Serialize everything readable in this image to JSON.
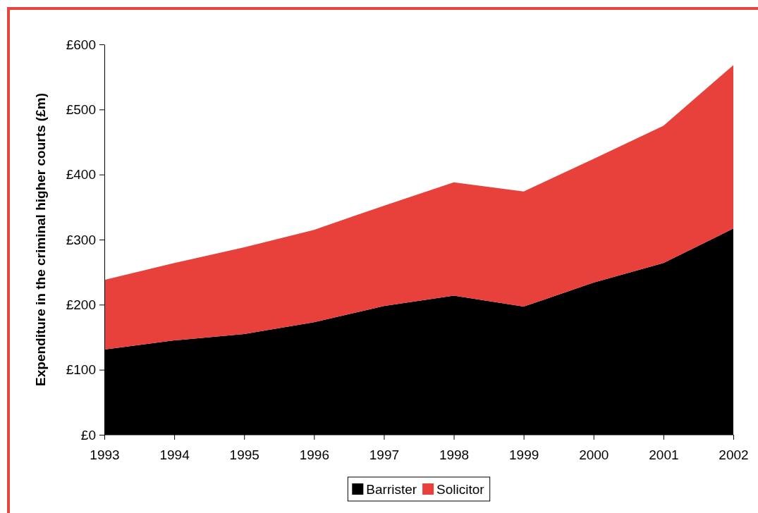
{
  "chart_data": {
    "type": "area",
    "stacked": true,
    "ylabel": "Expenditure in the criminal higher courts (£m)",
    "categories": [
      "1993",
      "1994",
      "1995",
      "1996",
      "1997",
      "1998",
      "1999",
      "2000",
      "2001",
      "2002"
    ],
    "series": [
      {
        "name": "Barrister",
        "color": "#000000",
        "values": [
          131,
          145,
          155,
          173,
          198,
          214,
          197,
          234,
          264,
          317
        ]
      },
      {
        "name": "Solicitor",
        "color": "#e8403a",
        "values": [
          107,
          119,
          133,
          142,
          154,
          174,
          177,
          190,
          211,
          251
        ]
      }
    ],
    "ylim": [
      0,
      600
    ],
    "yticks": [
      {
        "value": 0,
        "label": "£0"
      },
      {
        "value": 100,
        "label": "£100"
      },
      {
        "value": 200,
        "label": "£200"
      },
      {
        "value": 300,
        "label": "£300"
      },
      {
        "value": 400,
        "label": "£400"
      },
      {
        "value": 500,
        "label": "£500"
      },
      {
        "value": 600,
        "label": "£600"
      }
    ],
    "legend": "bottom"
  }
}
